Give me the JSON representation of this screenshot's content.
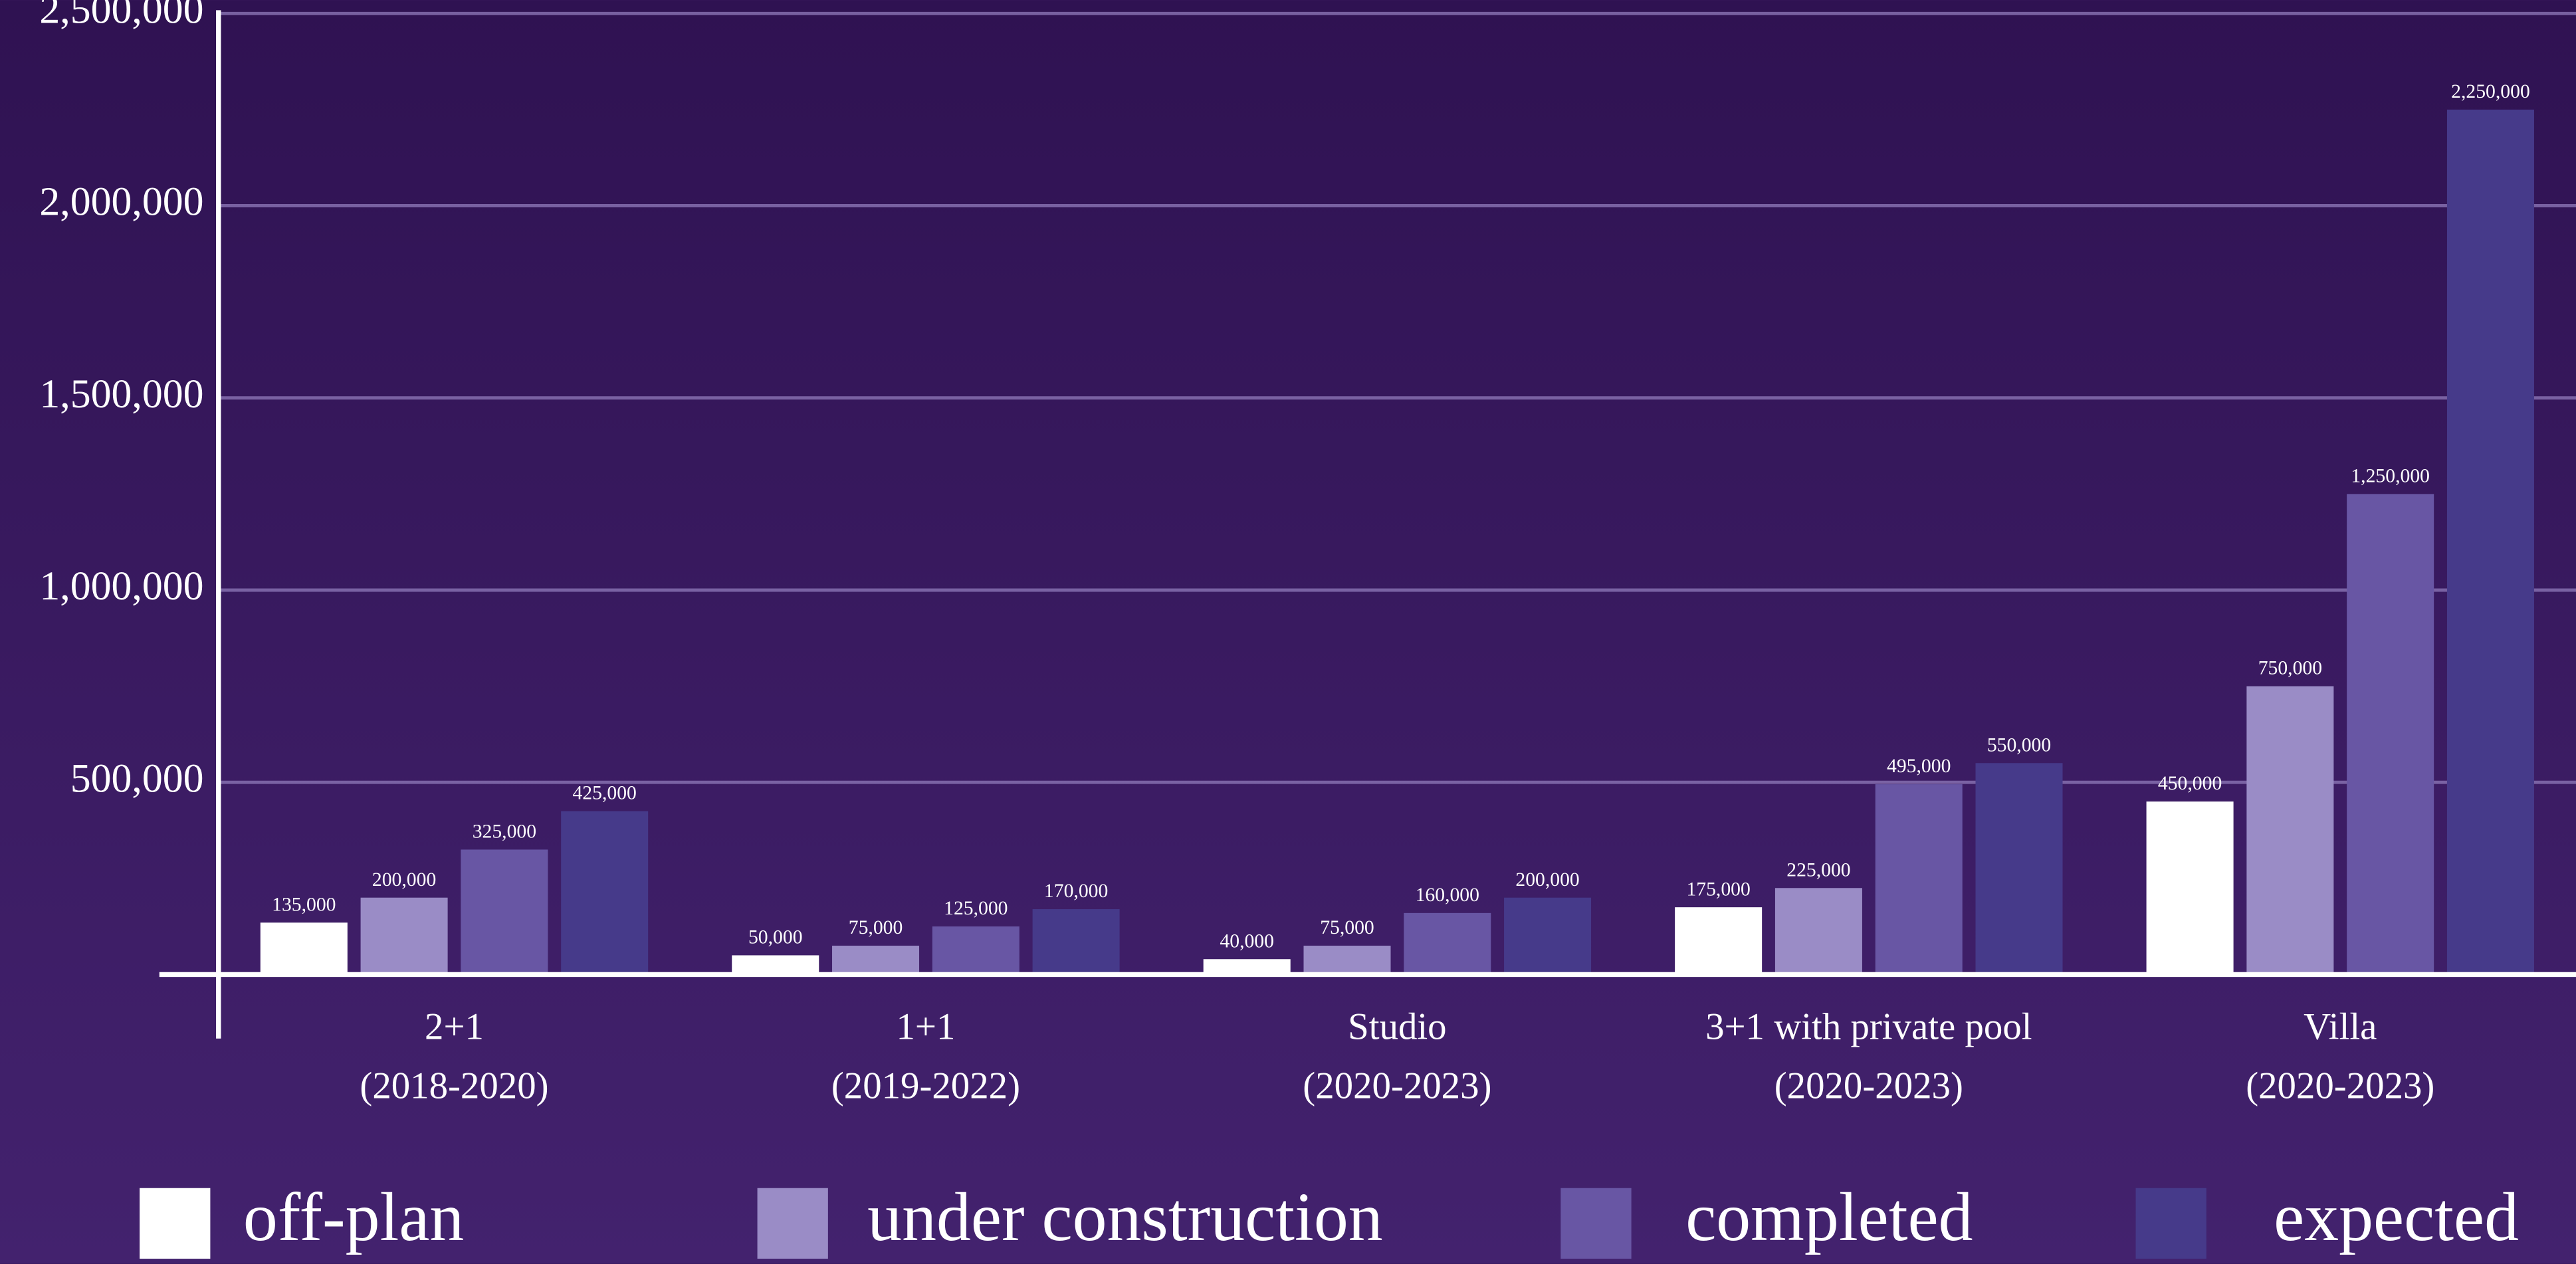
{
  "chart_data": {
    "type": "bar",
    "categories": [
      [
        "2+1",
        "(2018-2020)"
      ],
      [
        "1+1",
        "(2019-2022)"
      ],
      [
        "Studio",
        "(2020-2023)"
      ],
      [
        "3+1 with private pool",
        "(2020-2023)"
      ],
      [
        "Villa",
        "(2020-2023)"
      ]
    ],
    "series": [
      {
        "name": "off-plan",
        "color": "#ffffff",
        "values": [
          135000,
          50000,
          40000,
          175000,
          450000
        ],
        "value_labels": [
          "135,000",
          "50,000",
          "40,000",
          "175,000",
          "450,000"
        ]
      },
      {
        "name": "under construction",
        "color": "#9a8cc6",
        "values": [
          200000,
          75000,
          75000,
          225000,
          750000
        ],
        "value_labels": [
          "200,000",
          "75,000",
          "75,000",
          "225,000",
          "750,000"
        ]
      },
      {
        "name": "completed",
        "color": "#6856a4",
        "values": [
          325000,
          125000,
          160000,
          495000,
          1250000
        ],
        "value_labels": [
          "325,000",
          "125,000",
          "160,000",
          "495,000",
          "1,250,000"
        ]
      },
      {
        "name": "expected",
        "color": "#463a8a",
        "values": [
          425000,
          170000,
          200000,
          550000,
          2250000
        ],
        "value_labels": [
          "425,000",
          "170,000",
          "200,000",
          "550,000",
          "2,250,000"
        ]
      }
    ],
    "ylim": [
      0,
      2500000
    ],
    "yticks": [
      {
        "value": 500000,
        "label": "500,000"
      },
      {
        "value": 1000000,
        "label": "1,000,000"
      },
      {
        "value": 1500000,
        "label": "1,500,000"
      },
      {
        "value": 2000000,
        "label": "2,000,000"
      },
      {
        "value": 2500000,
        "label": "2,500,000"
      }
    ],
    "grid": true
  }
}
